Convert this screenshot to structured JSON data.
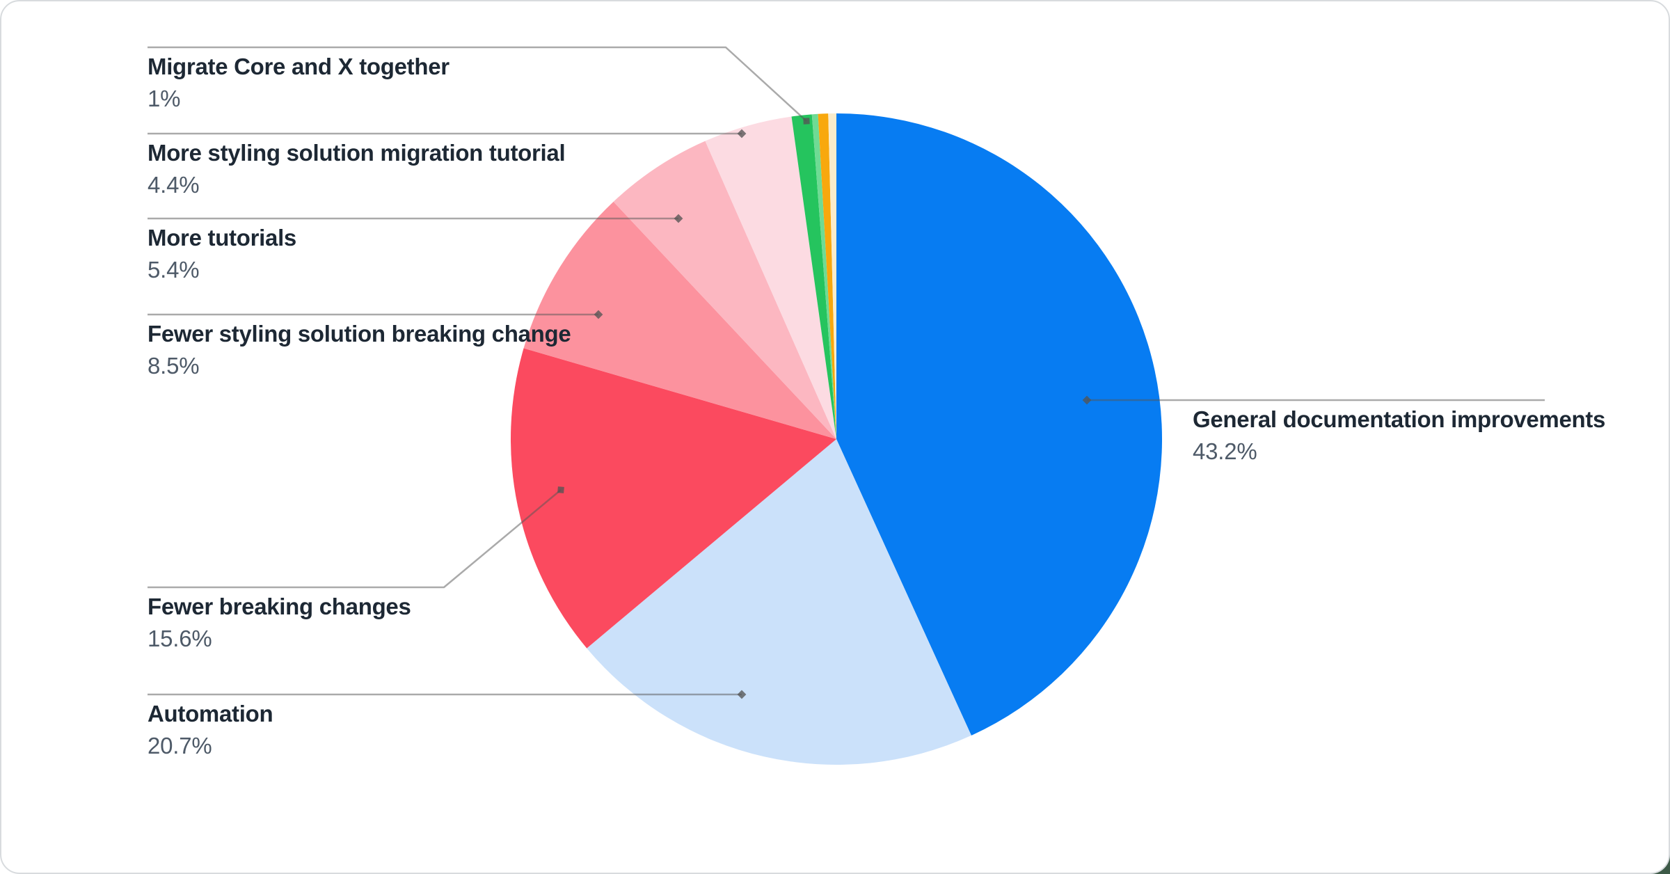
{
  "chart_data": {
    "type": "pie",
    "title": "",
    "unit": "%",
    "legend_position": "callout-labels",
    "slices": [
      {
        "label": "General documentation improvements",
        "pct_label": "43.2%",
        "value": 43.2,
        "color": "#077cf2"
      },
      {
        "label": "Automation",
        "pct_label": "20.7%",
        "value": 20.7,
        "color": "#cbe1fa"
      },
      {
        "label": "Fewer breaking changes",
        "pct_label": "15.6%",
        "value": 15.6,
        "color": "#fb4a5f"
      },
      {
        "label": "Fewer styling solution breaking change",
        "pct_label": "8.5%",
        "value": 8.5,
        "color": "#fc929e"
      },
      {
        "label": "More tutorials",
        "pct_label": "5.4%",
        "value": 5.4,
        "color": "#fcb7c1"
      },
      {
        "label": "More styling solution migration tutorial",
        "pct_label": "4.4%",
        "value": 4.4,
        "color": "#fcdbe2"
      },
      {
        "label": "Migrate Core and X together",
        "pct_label": "1%",
        "value": 1,
        "color": "#25c45e"
      },
      {
        "label": "",
        "pct_label": "",
        "value": 0.3,
        "color": "#6fdb94"
      },
      {
        "label": "",
        "pct_label": "",
        "value": 0.5,
        "color": "#f8a80d"
      },
      {
        "label": "",
        "pct_label": "",
        "value": 0.4,
        "color": "#faeccb"
      }
    ],
    "colors": {
      "leader_line": "rgba(85,85,85,0.5)",
      "marker": "rgba(85,85,85,0.78)",
      "label_text": "#1d2834",
      "pct_text": "#4e5a68",
      "card_border": "#d8dbde",
      "page_corner": "#3d5a47"
    }
  }
}
